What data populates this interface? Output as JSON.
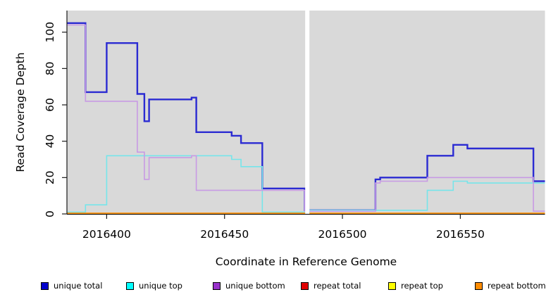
{
  "chart_data": {
    "type": "line",
    "line_style": "step",
    "title": "",
    "xlabel": "Coordinate in Reference Genome",
    "ylabel": "Read Coverage Depth",
    "xlim": [
      2016383.3,
      2016585.9
    ],
    "ylim": [
      0,
      112
    ],
    "x_ticks": [
      2016400,
      2016450,
      2016500,
      2016550
    ],
    "y_ticks": [
      0,
      20,
      40,
      60,
      80,
      100
    ],
    "grid": false,
    "plot_background": "#d9d9d9",
    "masked_region": {
      "start": 2016484.2,
      "end": 2016486.0
    },
    "legend_position": "bottom",
    "series": [
      {
        "name": "unique total",
        "color": "#0000cd",
        "line_color": "#2b2bd2",
        "line_width": 2.4,
        "points": [
          [
            2016383.3,
            105
          ],
          [
            2016391,
            67
          ],
          [
            2016400,
            94
          ],
          [
            2016413,
            66
          ],
          [
            2016416,
            51
          ],
          [
            2016418,
            63
          ],
          [
            2016436,
            64
          ],
          [
            2016438,
            45
          ],
          [
            2016453,
            43
          ],
          [
            2016457,
            39
          ],
          [
            2016466,
            14
          ],
          [
            2016484,
            2
          ],
          [
            2016514,
            19
          ],
          [
            2016516,
            20
          ],
          [
            2016536,
            32
          ],
          [
            2016547,
            38
          ],
          [
            2016553,
            36
          ],
          [
            2016581,
            18
          ],
          [
            2016585.9,
            18
          ]
        ]
      },
      {
        "name": "unique top",
        "color": "#00ffff",
        "line_color": "#76e5ea",
        "line_width": 1.6,
        "points": [
          [
            2016383.3,
            1
          ],
          [
            2016391,
            5
          ],
          [
            2016400,
            32
          ],
          [
            2016453,
            30
          ],
          [
            2016457,
            26
          ],
          [
            2016466,
            1
          ],
          [
            2016486,
            2
          ],
          [
            2016536,
            13
          ],
          [
            2016547,
            18
          ],
          [
            2016553,
            17
          ],
          [
            2016585.9,
            17
          ]
        ]
      },
      {
        "name": "unique bottom",
        "color": "#9932cc",
        "line_color": "#c89ae4",
        "line_width": 1.6,
        "points": [
          [
            2016383.3,
            104
          ],
          [
            2016391,
            62
          ],
          [
            2016413,
            34
          ],
          [
            2016416,
            19
          ],
          [
            2016418,
            31
          ],
          [
            2016436,
            32
          ],
          [
            2016438,
            13
          ],
          [
            2016484,
            1.5
          ],
          [
            2016514,
            17
          ],
          [
            2016516,
            18
          ],
          [
            2016536,
            20
          ],
          [
            2016581,
            1.5
          ],
          [
            2016585.9,
            1.5
          ]
        ]
      },
      {
        "name": "repeat total",
        "color": "#e00000",
        "line_color": "#e00000",
        "line_width": 1.5,
        "points": [
          [
            2016383.3,
            0
          ],
          [
            2016585.9,
            0
          ]
        ]
      },
      {
        "name": "repeat top",
        "color": "#ffff00",
        "line_color": "#ffff00",
        "line_width": 1.5,
        "points": [
          [
            2016383.3,
            0
          ],
          [
            2016585.9,
            0
          ]
        ]
      },
      {
        "name": "repeat bottom",
        "color": "#ff8c00",
        "line_color": "#ff9415",
        "line_width": 1.8,
        "points": [
          [
            2016383.3,
            0
          ],
          [
            2016585.9,
            0
          ]
        ]
      }
    ]
  }
}
